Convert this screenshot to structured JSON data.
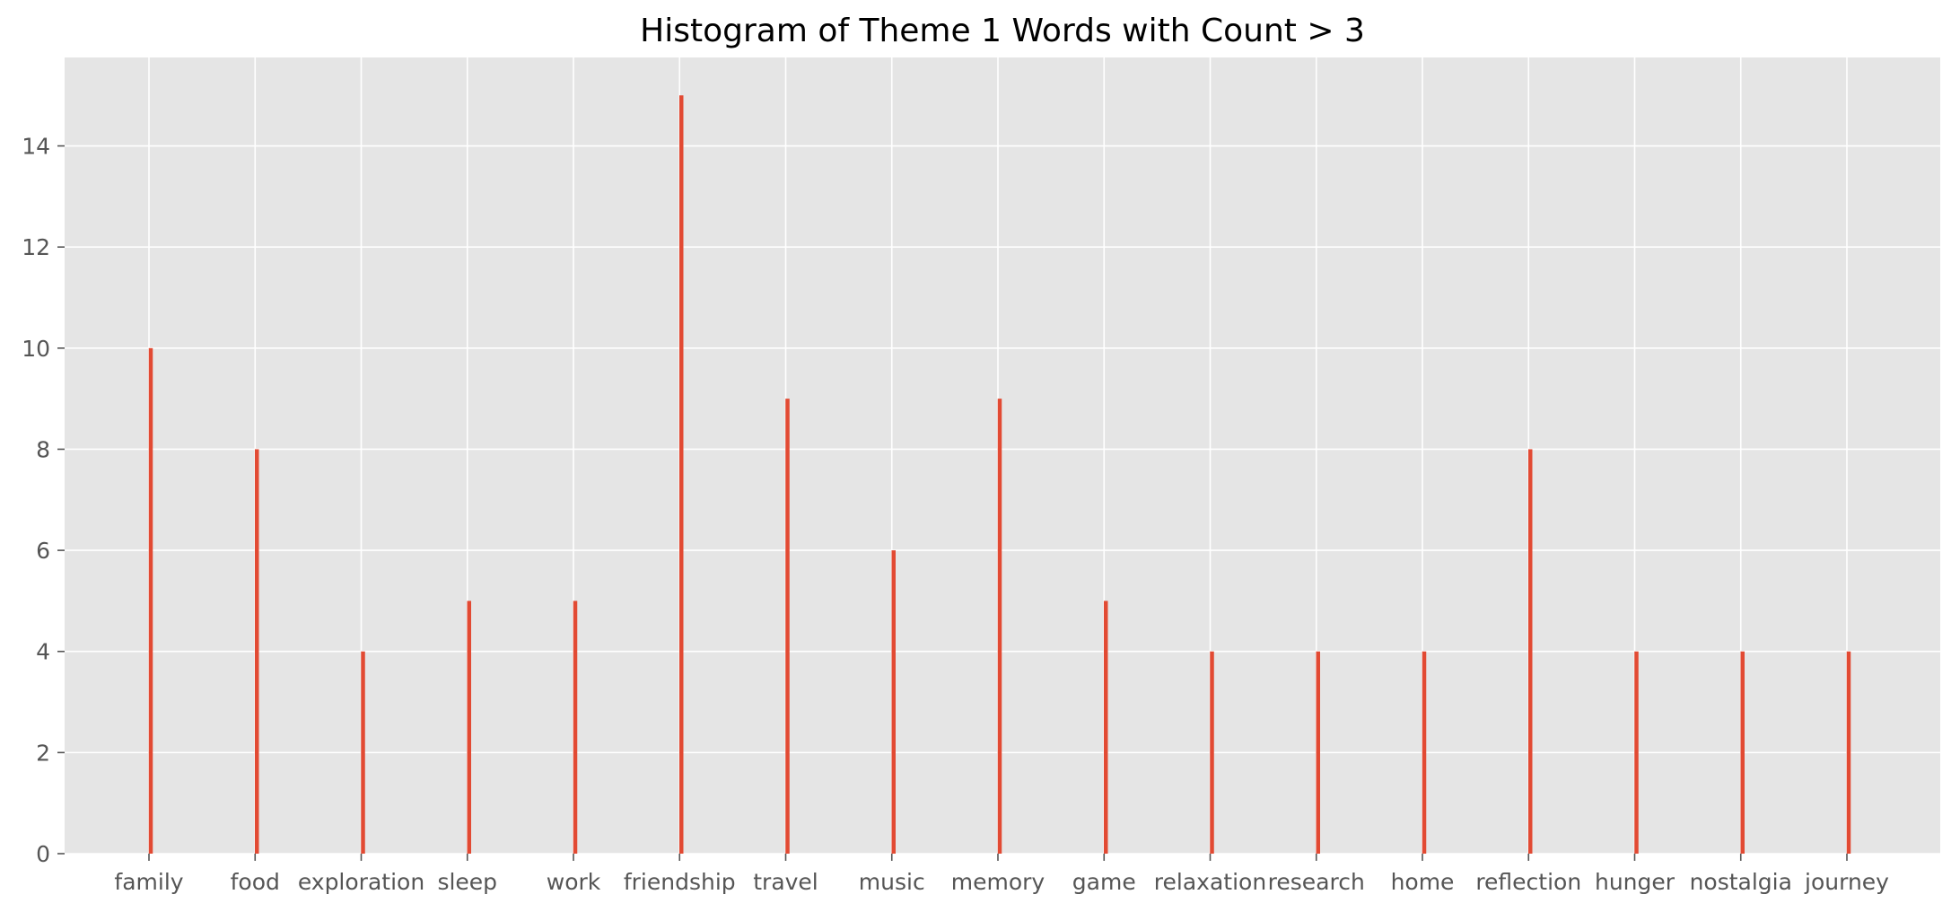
{
  "chart_data": {
    "type": "bar",
    "title": "Histogram of Theme 1 Words with Count > 3",
    "xlabel": "",
    "ylabel": "",
    "categories": [
      "family",
      "food",
      "exploration",
      "sleep",
      "work",
      "friendship",
      "travel",
      "music",
      "memory",
      "game",
      "relaxation",
      "research",
      "home",
      "reflection",
      "hunger",
      "nostalgia",
      "journey"
    ],
    "values": [
      10,
      8,
      4,
      5,
      5,
      15,
      9,
      6,
      9,
      5,
      4,
      4,
      4,
      8,
      4,
      4,
      4
    ],
    "ylim": [
      0,
      15.75
    ],
    "yticks": [
      0,
      2,
      4,
      6,
      8,
      10,
      12,
      14
    ],
    "grid": true,
    "colors": {
      "bar": "#E24A33",
      "background": "#E5E5E5",
      "grid": "#FFFFFF"
    }
  }
}
